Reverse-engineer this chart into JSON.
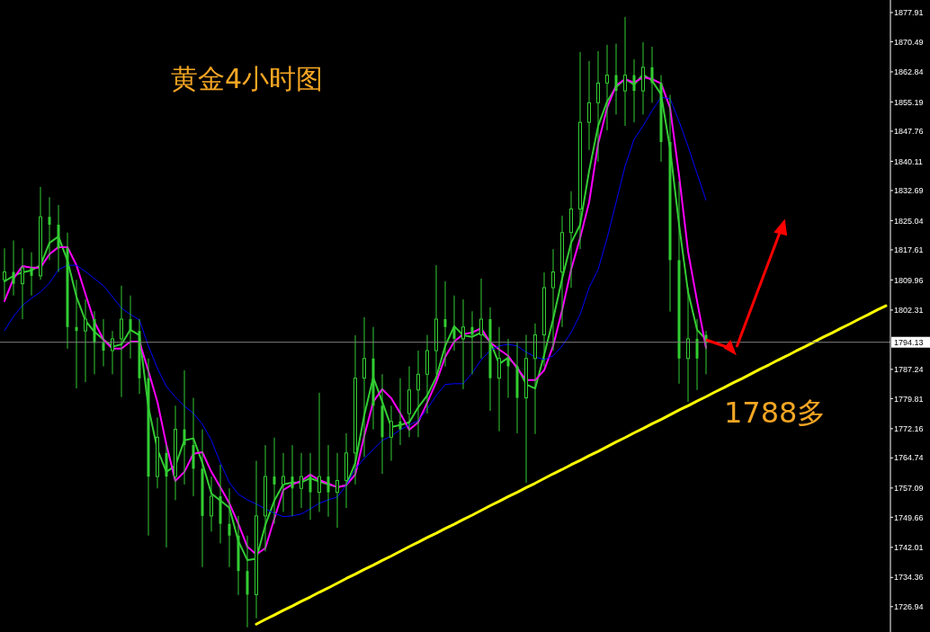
{
  "chart_data": {
    "type": "candlestick",
    "title": "黄金4小时图",
    "annotations": [
      "1788多"
    ],
    "categories": [
      null,
      null,
      null,
      null,
      null,
      null,
      null,
      null,
      null,
      null,
      null,
      null,
      null,
      null,
      null,
      null,
      null,
      null,
      null,
      null,
      null,
      null,
      null,
      null,
      null,
      null,
      null,
      null,
      null,
      null,
      null,
      null,
      null,
      null,
      null,
      null,
      null,
      null,
      null,
      null,
      null,
      null,
      null,
      null,
      null,
      null,
      null,
      null,
      null,
      null,
      null,
      null,
      null,
      null,
      null,
      null,
      null,
      null,
      null,
      null,
      null,
      null,
      null,
      null,
      null,
      null,
      null,
      null,
      null,
      null,
      null,
      null,
      null,
      null,
      null,
      null,
      null,
      null,
      null,
      null,
      null,
      null,
      null,
      null,
      null,
      null,
      null,
      null,
      null,
      null,
      null,
      null,
      null,
      null,
      null,
      null,
      null,
      null,
      null
    ],
    "color": "#32cd32",
    "ohlc": [
      [
        1810,
        1818,
        1805,
        1812
      ],
      [
        1812,
        1820,
        1806,
        1809
      ],
      [
        1809,
        1818,
        1800,
        1813
      ],
      [
        1813,
        1817,
        1806,
        1811
      ],
      [
        1811,
        1833.6,
        1810,
        1826
      ],
      [
        1826,
        1831,
        1815,
        1824
      ],
      [
        1824,
        1829,
        1812,
        1818
      ],
      [
        1818,
        1822,
        1792.5,
        1798
      ],
      [
        1798,
        1810,
        1782.4,
        1797
      ],
      [
        1797,
        1805,
        1784,
        1800
      ],
      [
        1800,
        1802,
        1786,
        1794
      ],
      [
        1794,
        1800,
        1788,
        1792
      ],
      [
        1792,
        1797,
        1786,
        1795
      ],
      [
        1795,
        1808.5,
        1780.2,
        1800
      ],
      [
        1800,
        1806,
        1790,
        1797
      ],
      [
        1797,
        1800,
        1781,
        1785
      ],
      [
        1785,
        1790,
        1745,
        1760
      ],
      [
        1760,
        1775,
        1757,
        1770
      ],
      [
        1766,
        1768,
        1742,
        1760
      ],
      [
        1760,
        1778,
        1754,
        1772
      ],
      [
        1772,
        1787,
        1758,
        1768
      ],
      [
        1768,
        1780,
        1755,
        1762
      ],
      [
        1762,
        1772,
        1737,
        1750
      ],
      [
        1750,
        1760,
        1746,
        1755
      ],
      [
        1755,
        1763,
        1743,
        1748
      ],
      [
        1748,
        1757,
        1737,
        1745
      ],
      [
        1745,
        1750,
        1729.9,
        1736
      ],
      [
        1736,
        1745,
        1721.7,
        1730
      ],
      [
        1730,
        1764,
        1724,
        1750
      ],
      [
        1750,
        1768,
        1741,
        1760
      ],
      [
        1760,
        1769.9,
        1748,
        1758
      ],
      [
        1758,
        1766,
        1751,
        1760
      ],
      [
        1760,
        1768,
        1750,
        1757
      ],
      [
        1757,
        1766,
        1752,
        1760
      ],
      [
        1760,
        1766,
        1749,
        1756
      ],
      [
        1756,
        1781.3,
        1751,
        1760
      ],
      [
        1760,
        1768,
        1749.8,
        1756
      ],
      [
        1756,
        1766,
        1747,
        1759
      ],
      [
        1759,
        1771,
        1752,
        1766
      ],
      [
        1766,
        1795.9,
        1758,
        1785
      ],
      [
        1785,
        1800.5,
        1765,
        1790
      ],
      [
        1790,
        1798,
        1772,
        1778
      ],
      [
        1778,
        1786,
        1760.7,
        1770
      ],
      [
        1770,
        1778,
        1764,
        1774
      ],
      [
        1774,
        1785,
        1768,
        1772
      ],
      [
        1776,
        1788,
        1770,
        1782
      ],
      [
        1782,
        1792,
        1770,
        1786
      ],
      [
        1786,
        1796,
        1776,
        1792
      ],
      [
        1792,
        1813.7,
        1786,
        1800
      ],
      [
        1800,
        1809.6,
        1788,
        1798
      ],
      [
        1798,
        1806,
        1792,
        1795
      ],
      [
        1795,
        1805,
        1782.2,
        1798
      ],
      [
        1798,
        1802,
        1786,
        1796
      ],
      [
        1796,
        1810.3,
        1790,
        1800
      ],
      [
        1800,
        1803,
        1776.7,
        1785
      ],
      [
        1785,
        1798,
        1771.5,
        1790
      ],
      [
        1790,
        1795,
        1780,
        1788
      ],
      [
        1788,
        1794,
        1771,
        1780
      ],
      [
        1780,
        1796,
        1758.4,
        1790
      ],
      [
        1790,
        1798.9,
        1770.8,
        1796
      ],
      [
        1796,
        1811.9,
        1788,
        1808
      ],
      [
        1808,
        1817.8,
        1792,
        1812
      ],
      [
        1812,
        1826.3,
        1798,
        1822
      ],
      [
        1822,
        1832.5,
        1808,
        1828
      ],
      [
        1828,
        1867.9,
        1817.8,
        1850
      ],
      [
        1850,
        1865.6,
        1843,
        1855
      ],
      [
        1855,
        1868.1,
        1840,
        1860
      ],
      [
        1860,
        1869.7,
        1848,
        1862
      ],
      [
        1862,
        1870,
        1852,
        1858
      ],
      [
        1858,
        1876.8,
        1849.1,
        1862
      ],
      [
        1862,
        1866,
        1850,
        1858
      ],
      [
        1858,
        1870.4,
        1852,
        1864
      ],
      [
        1864,
        1869.2,
        1855,
        1860
      ],
      [
        1860,
        1862,
        1840,
        1845
      ],
      [
        1845,
        1857,
        1801.9,
        1815
      ],
      [
        1815,
        1835,
        1783.6,
        1790
      ],
      [
        1790,
        1808,
        1779,
        1795
      ],
      [
        1795,
        1800,
        1782,
        1790
      ],
      [
        1796,
        1797,
        1786,
        1794
      ],
      null,
      null,
      null,
      null,
      null,
      null,
      null,
      null,
      null,
      null,
      null,
      null,
      null,
      null,
      null,
      null,
      null,
      null,
      null,
      null
    ],
    "series": [
      {
        "type": "line",
        "color": "#33cc33",
        "values": [
          1809.6,
          1811.0,
          1811.9,
          1812.4,
          1813.7,
          1819.4,
          1821.0,
          1814.9,
          1805.7,
          1799.6,
          1796.8,
          1794.8,
          1793.0,
          1793.6,
          1797.3,
          1795.9,
          1777.6,
          1766.9,
          1761.2,
          1762.8,
          1769.2,
          1769.7,
          1763.5,
          1755.7,
          1753.9,
          1752.1,
          1743.6,
          1738.8,
          1739.1,
          1747.7,
          1753.9,
          1758.0,
          1758.5,
          1758.5,
          1759.6,
          1758.7,
          1758.0,
          1757.3,
          1757.8,
          1763.5,
          1775.6,
          1785.2,
          1779.0,
          1772.6,
          1773.1,
          1773.8,
          1777.6,
          1780.6,
          1785.2,
          1793.2,
          1798.2,
          1795.9,
          1795.5,
          1796.6,
          1794.3,
          1788.6,
          1790.2,
          1787.9,
          1783.4,
          1782.4,
          1790.9,
          1800.0,
          1810.3,
          1819.4,
          1824.0,
          1837.7,
          1849.1,
          1855.3,
          1859.0,
          1861.0,
          1859.6,
          1862.2,
          1860.6,
          1857.1,
          1843.4,
          1824.0,
          1806.9,
          1797.3,
          1794.8,
          null,
          null,
          null,
          null,
          null,
          null,
          null,
          null,
          null,
          null,
          null,
          null,
          null,
          null,
          null,
          null,
          null,
          null,
          null,
          null
        ]
      },
      {
        "type": "line",
        "color": "#ff00ff",
        "values": [
          1804.6,
          1810.3,
          1813.5,
          1813.1,
          1813.1,
          1816.5,
          1818.3,
          1818.3,
          1813.7,
          1806.4,
          1799.3,
          1794.8,
          1792.5,
          1792.5,
          1794.3,
          1794.3,
          1786.8,
          1779.0,
          1768.1,
          1758.9,
          1761.2,
          1765.8,
          1766.2,
          1761.2,
          1757.3,
          1753.2,
          1748.0,
          1742.2,
          1740.2,
          1741.8,
          1749.3,
          1756.6,
          1758.0,
          1758.9,
          1760.5,
          1759.1,
          1758.2,
          1757.3,
          1757.8,
          1760.5,
          1770.3,
          1779.0,
          1782.2,
          1779.9,
          1776.1,
          1771.9,
          1773.8,
          1778.8,
          1784.0,
          1790.4,
          1794.3,
          1796.2,
          1796.6,
          1797.7,
          1794.1,
          1792.3,
          1790.7,
          1787.5,
          1784.5,
          1784.5,
          1787.0,
          1793.2,
          1802.3,
          1812.6,
          1820.6,
          1829.7,
          1844.6,
          1853.7,
          1859.4,
          1861.0,
          1860.1,
          1861.5,
          1861.0,
          1859.9,
          1853.7,
          1836.6,
          1817.2,
          1804.6,
          1792.7,
          null,
          null,
          null,
          null,
          null,
          null,
          null,
          null,
          null,
          null,
          null,
          null,
          null,
          null,
          null,
          null,
          null,
          null,
          null,
          null
        ]
      },
      {
        "type": "line",
        "color": "#0000ff",
        "values": [
          1797.1,
          1800.7,
          1803.5,
          1805.3,
          1806.9,
          1809.2,
          1812.6,
          1813.7,
          1813.7,
          1812.1,
          1810.3,
          1808.5,
          1805.7,
          1802.8,
          1801.2,
          1799.8,
          1793.2,
          1787.5,
          1782.9,
          1780.2,
          1777.9,
          1776.1,
          1773.3,
          1769.2,
          1763.5,
          1758.5,
          1755.5,
          1754.1,
          1753.0,
          1751.8,
          1750.7,
          1749.8,
          1750.0,
          1750.5,
          1751.8,
          1753.2,
          1754.1,
          1754.8,
          1757.8,
          1761.9,
          1764.6,
          1766.9,
          1769.2,
          1770.3,
          1771.9,
          1773.1,
          1774.2,
          1777.2,
          1780.6,
          1783.4,
          1783.6,
          1783.6,
          1786.3,
          1789.7,
          1792.0,
          1793.2,
          1793.6,
          1793.2,
          1791.6,
          1790.4,
          1789.7,
          1790.7,
          1793.2,
          1796.6,
          1801.2,
          1808.0,
          1812.6,
          1820.6,
          1829.7,
          1838.9,
          1845.7,
          1849.1,
          1853.0,
          1856.4,
          1856.0,
          1850.3,
          1843.9,
          1837.0,
          1830.2,
          null,
          null,
          null,
          null,
          null,
          null,
          null,
          null,
          null,
          null,
          null,
          null,
          null,
          null,
          null,
          null,
          null,
          null,
          null,
          null
        ]
      },
      {
        "type": "line",
        "color": "#ffff00",
        "values": [
          null,
          null,
          null,
          null,
          null,
          null,
          null,
          null,
          null,
          null,
          null,
          null,
          null,
          null,
          null,
          null,
          null,
          null,
          null,
          null,
          null,
          null,
          null,
          null,
          null,
          null,
          null,
          null,
          1722.5,
          1723.7,
          1724.8,
          1726.0,
          1727.1,
          1728.3,
          1729.4,
          1730.6,
          1731.7,
          1732.9,
          1734.1,
          1735.2,
          1736.4,
          1737.5,
          1738.7,
          1739.8,
          1741.0,
          1742.2,
          1743.3,
          1744.5,
          1745.6,
          1746.8,
          1747.9,
          1749.1,
          1750.2,
          1751.4,
          1752.6,
          1753.7,
          1754.9,
          1756.0,
          1757.2,
          1758.3,
          1759.5,
          1760.7,
          1761.8,
          1763.0,
          1764.1,
          1765.3,
          1766.4,
          1767.6,
          1768.8,
          1769.9,
          1771.1,
          1772.2,
          1773.4,
          1774.5,
          1775.7,
          1776.9,
          1778.0,
          1779.2,
          1780.3,
          1781.5,
          1782.6,
          1783.8,
          1784.9,
          1786.1,
          1787.3,
          1788.4,
          1789.6,
          1790.7,
          1791.9,
          1793.0,
          1794.2,
          1795.4,
          1796.5,
          1797.7,
          1798.8,
          1800.0,
          1801.1,
          1802.3,
          1803.4
        ]
      }
    ],
    "ref_lines": [
      {
        "axis": "y",
        "value": 1794.13,
        "label": "1794.13",
        "color": "#808080"
      }
    ],
    "ylim": [
      1720.5,
      1881.1
    ],
    "yticks": [
      1726.94,
      1734.36,
      1742.01,
      1749.66,
      1757.09,
      1764.74,
      1772.16,
      1779.81,
      1787.24,
      1802.31,
      1809.96,
      1817.61,
      1825.04,
      1832.69,
      1840.11,
      1847.76,
      1855.19,
      1862.84,
      1870.49,
      1877.91
    ]
  }
}
